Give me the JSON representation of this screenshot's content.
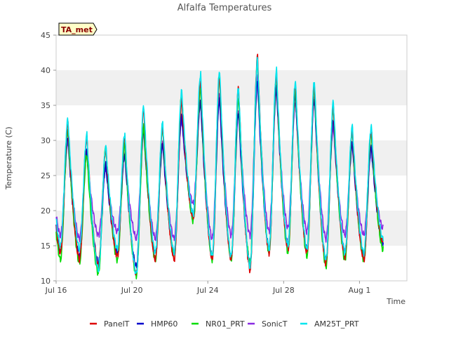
{
  "chart_data": {
    "type": "line",
    "title": "Alfalfa Temperatures",
    "xlabel": "Time",
    "ylabel": "Temperature (C)",
    "badge": "TA_met",
    "ylim": [
      10,
      45
    ],
    "xlim": [
      "2023-07-16",
      "2023-08-03"
    ],
    "x_ticks": [
      "Jul 16",
      "Jul 20",
      "Jul 24",
      "Jul 28",
      "Aug 1"
    ],
    "y_ticks": [
      10,
      15,
      20,
      25,
      30,
      35,
      40,
      45
    ],
    "grid": "horizontal bands",
    "legend_position": "bottom",
    "days": [
      "Jul 16",
      "Jul 17",
      "Jul 18",
      "Jul 19",
      "Jul 20",
      "Jul 21",
      "Jul 22",
      "Jul 23",
      "Jul 24",
      "Jul 25",
      "Jul 26",
      "Jul 27",
      "Jul 28",
      "Jul 29",
      "Jul 30",
      "Jul 31",
      "Aug 1",
      "Aug 2"
    ],
    "series": [
      {
        "name": "PanelT",
        "color": "#dd0000",
        "daily_max": [
          32.5,
          30.5,
          28.8,
          30.5,
          34.5,
          32.0,
          35.5,
          38.5,
          39.0,
          37.5,
          42.0,
          39.5,
          38.0,
          38.0,
          35.0,
          31.5,
          31.5,
          31.0
        ],
        "daily_min": [
          14.0,
          13.0,
          12.0,
          13.5,
          11.0,
          13.0,
          13.0,
          19.0,
          13.0,
          13.0,
          11.5,
          14.0,
          14.5,
          14.0,
          12.5,
          13.5,
          13.0,
          15.5
        ]
      },
      {
        "name": "HMP60",
        "color": "#0000cc",
        "daily_max": [
          30.5,
          28.5,
          26.5,
          28.0,
          31.5,
          29.5,
          33.5,
          35.5,
          35.8,
          34.0,
          38.5,
          37.5,
          36.5,
          36.0,
          33.0,
          29.5,
          29.0,
          29.0
        ],
        "daily_min": [
          14.0,
          13.5,
          12.5,
          14.0,
          12.0,
          14.0,
          14.0,
          19.5,
          13.5,
          13.5,
          12.5,
          14.5,
          15.0,
          14.5,
          13.0,
          14.0,
          13.5,
          15.5
        ]
      },
      {
        "name": "NR01_PRT",
        "color": "#00dd00",
        "daily_max": [
          31.5,
          28.0,
          29.0,
          29.5,
          32.0,
          31.5,
          36.5,
          37.5,
          39.0,
          36.0,
          41.0,
          39.0,
          37.5,
          37.5,
          34.5,
          31.0,
          31.0,
          31.0
        ],
        "daily_min": [
          13.0,
          12.5,
          11.0,
          13.0,
          10.8,
          13.0,
          13.5,
          18.5,
          13.0,
          13.0,
          12.5,
          14.0,
          14.0,
          13.5,
          12.0,
          13.0,
          13.0,
          14.5
        ]
      },
      {
        "name": "SonicT",
        "color": "#8a2be2",
        "daily_max": [
          30.0,
          28.0,
          26.0,
          28.0,
          31.0,
          29.5,
          33.0,
          35.5,
          36.5,
          34.0,
          39.0,
          37.0,
          35.5,
          36.0,
          32.0,
          29.5,
          29.0,
          29.0
        ],
        "daily_min": [
          16.5,
          16.0,
          16.5,
          17.0,
          16.0,
          16.0,
          16.0,
          21.0,
          16.0,
          16.5,
          16.5,
          17.0,
          17.5,
          17.0,
          16.0,
          16.5,
          16.5,
          17.5
        ]
      },
      {
        "name": "AM25T_PRT",
        "color": "#00e5ee",
        "daily_max": [
          33.0,
          30.8,
          29.2,
          31.0,
          35.0,
          32.5,
          37.0,
          39.5,
          40.0,
          37.5,
          41.5,
          40.0,
          38.5,
          38.5,
          35.5,
          32.0,
          32.0,
          31.5
        ],
        "daily_min": [
          15.0,
          14.5,
          11.5,
          14.5,
          11.0,
          14.0,
          14.0,
          19.5,
          13.5,
          13.5,
          12.0,
          14.5,
          15.0,
          14.5,
          13.0,
          14.0,
          14.0,
          16.0
        ]
      }
    ]
  }
}
